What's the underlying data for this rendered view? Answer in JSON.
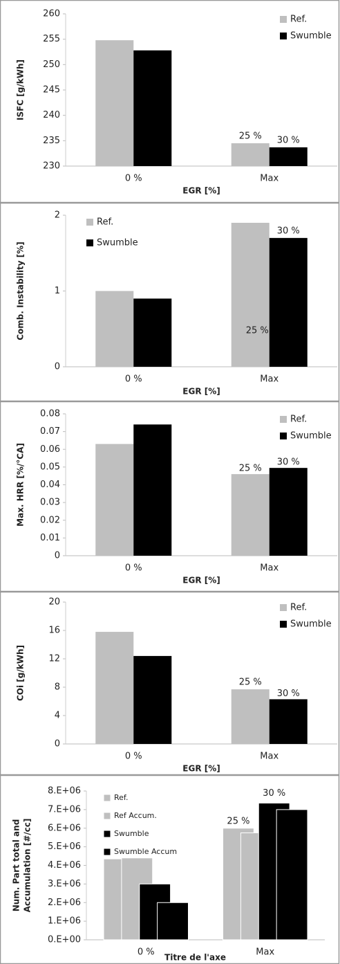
{
  "chart_data": [
    {
      "type": "bar",
      "ylabel": "ISFC [g/kWh]",
      "xlabel": "EGR [%]",
      "categories": [
        "0 %",
        "Max"
      ],
      "series": [
        {
          "name": "Ref.",
          "color": "#bfbfbf",
          "values": [
            254.8,
            234.5
          ]
        },
        {
          "name": "Swumble",
          "color": "#000000",
          "values": [
            252.8,
            233.7
          ]
        }
      ],
      "annotations": [
        "25 %",
        "30 %"
      ],
      "ylim": [
        230,
        260
      ],
      "yticks": [
        230,
        235,
        240,
        245,
        250,
        255,
        260
      ],
      "legend": "upper right"
    },
    {
      "type": "bar",
      "ylabel": "Comb. Instability [%]",
      "xlabel": "EGR [%]",
      "categories": [
        "0 %",
        "Max"
      ],
      "series": [
        {
          "name": "Ref.",
          "color": "#bfbfbf",
          "values": [
            1.0,
            1.9
          ]
        },
        {
          "name": "Swumble",
          "color": "#000000",
          "values": [
            0.9,
            1.7
          ]
        }
      ],
      "annotations": [
        "25 %",
        "30 %"
      ],
      "ylim": [
        0,
        2
      ],
      "yticks": [
        0,
        1,
        2
      ],
      "legend": "upper left"
    },
    {
      "type": "bar",
      "ylabel": "Max. HRR [%/°CA]",
      "xlabel": "EGR [%]",
      "categories": [
        "0 %",
        "Max"
      ],
      "series": [
        {
          "name": "Ref.",
          "color": "#bfbfbf",
          "values": [
            0.063,
            0.046
          ]
        },
        {
          "name": "Swumble",
          "color": "#000000",
          "values": [
            0.074,
            0.0495
          ]
        }
      ],
      "annotations": [
        "25 %",
        "30 %"
      ],
      "ylim": [
        0,
        0.08
      ],
      "yticks": [
        0,
        0.01,
        0.02,
        0.03,
        0.04,
        0.05,
        0.06,
        0.07,
        0.08
      ],
      "legend": "upper right"
    },
    {
      "type": "bar",
      "ylabel": "COi [g/kWh]",
      "xlabel": "EGR [%]",
      "categories": [
        "0 %",
        "Max"
      ],
      "series": [
        {
          "name": "Ref.",
          "color": "#bfbfbf",
          "values": [
            15.8,
            7.7
          ]
        },
        {
          "name": "Swumble",
          "color": "#000000",
          "values": [
            12.4,
            6.3
          ]
        }
      ],
      "annotations": [
        "25 %",
        "30 %"
      ],
      "ylim": [
        0,
        20
      ],
      "yticks": [
        0,
        4,
        8,
        12,
        16,
        20
      ],
      "legend": "upper right"
    },
    {
      "type": "bar",
      "ylabel_lines": [
        "Num. Part total and",
        "Accumulation [#/cc]"
      ],
      "xlabel": "Titre de l'axe",
      "categories": [
        "0 %",
        "Max"
      ],
      "series": [
        {
          "name": "Ref.",
          "color": "#bfbfbf",
          "values": [
            4350000,
            6000000
          ]
        },
        {
          "name": "Ref Accum.",
          "color": "#bfbfbf",
          "values": [
            4400000,
            5750000
          ]
        },
        {
          "name": "Swumble",
          "color": "#000000",
          "values": [
            3000000,
            7350000
          ]
        },
        {
          "name": "Swumble Accum",
          "color": "#000000",
          "values": [
            2000000,
            7000000
          ]
        }
      ],
      "annotations": [
        "25 %",
        "30 %"
      ],
      "ylim": [
        0,
        8000000
      ],
      "yticks": [
        {
          "value": 0,
          "label": "0.E+00"
        },
        {
          "value": 1000000,
          "label": "1.E+06"
        },
        {
          "value": 2000000,
          "label": "2.E+06"
        },
        {
          "value": 3000000,
          "label": "3.E+06"
        },
        {
          "value": 4000000,
          "label": "4.E+06"
        },
        {
          "value": 5000000,
          "label": "5.E+06"
        },
        {
          "value": 6000000,
          "label": "6.E+06"
        },
        {
          "value": 7000000,
          "label": "7.E+06"
        },
        {
          "value": 8000000,
          "label": "8.E+06"
        }
      ],
      "legend": "upper left"
    }
  ]
}
